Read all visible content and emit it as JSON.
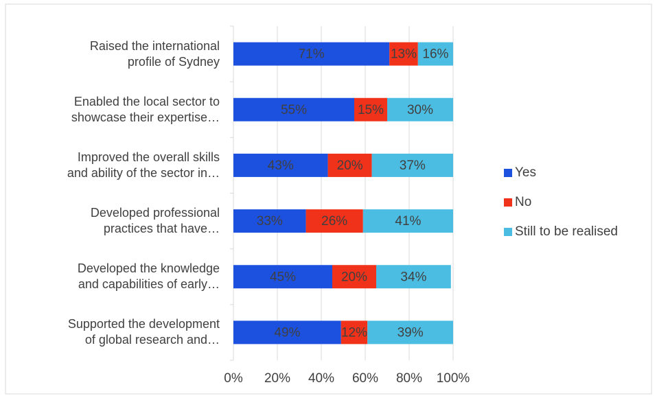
{
  "chart_data": {
    "type": "stacked_barh",
    "categories": [
      "Raised the international\nprofile of Sydney",
      "Enabled the local sector to\nshowcase their expertise…",
      "Improved the overall skills\nand ability of the sector in…",
      "Developed professional\npractices that have…",
      "Developed the knowledge\nand capabilities of early…",
      "Supported the development\nof global research and…"
    ],
    "series": [
      {
        "name": "Yes",
        "color": "#1c50df",
        "values": [
          71,
          55,
          43,
          33,
          45,
          49
        ],
        "value_labels": [
          "71%",
          "55%",
          "43%",
          "33%",
          "45%",
          "49%"
        ]
      },
      {
        "name": "No",
        "color": "#ef3219",
        "values": [
          13,
          15,
          20,
          26,
          20,
          12
        ],
        "value_labels": [
          "13%",
          "15%",
          "20%",
          "26%",
          "20%",
          "12%"
        ]
      },
      {
        "name": "Still to be realised",
        "color": "#4cbde2",
        "values": [
          16,
          30,
          37,
          41,
          34,
          39
        ],
        "value_labels": [
          "16%",
          "30%",
          "37%",
          "41%",
          "34%",
          "39%"
        ]
      }
    ],
    "xlim": [
      0,
      100
    ],
    "xticks": [
      {
        "value": 0,
        "label": "0%"
      },
      {
        "value": 20,
        "label": "20%"
      },
      {
        "value": 40,
        "label": "40%"
      },
      {
        "value": 60,
        "label": "60%"
      },
      {
        "value": 80,
        "label": "80%"
      },
      {
        "value": 100,
        "label": "100%"
      }
    ],
    "grid": true,
    "legend": "right"
  }
}
